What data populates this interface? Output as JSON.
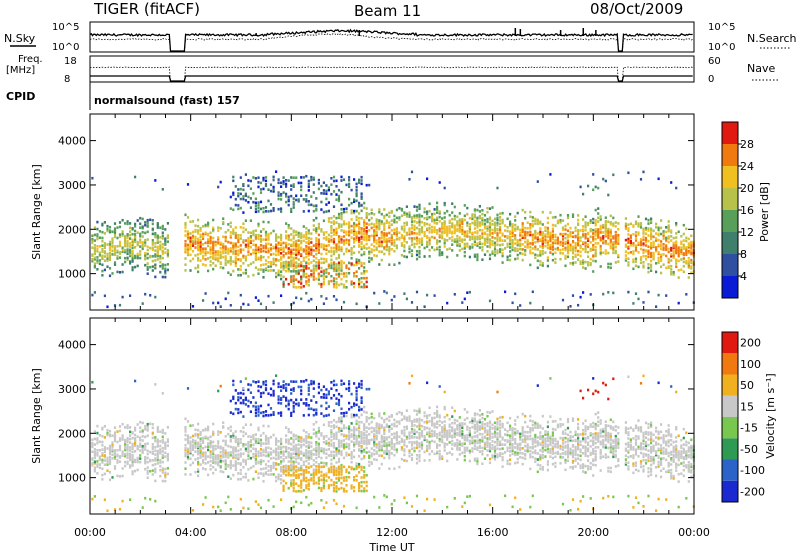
{
  "header": {
    "radar": "TIGER (fitACF)",
    "beam": "Beam 11",
    "date": "08/Oct/2009"
  },
  "summary": {
    "nsky_label": "N.Sky",
    "nsearch_label": "N.Search",
    "nsky_ticks": [
      "10^5",
      "10^0"
    ],
    "nsearch_ticks": [
      "10^5",
      "10^0"
    ],
    "freq_label_line1": "Freq.",
    "freq_label_line2": "[MHz]",
    "freq_ticks": [
      "18",
      "8"
    ],
    "nave_label": "Nave",
    "nave_ticks": [
      "60",
      "0"
    ],
    "cpid_label": "CPID",
    "cpid_text": "normalsound (fast) 157"
  },
  "chart_data": [
    {
      "type": "heatmap",
      "title": "Power",
      "ylabel": "Slant Range [km]",
      "ylim": [
        180,
        4600
      ],
      "yticks": [
        1000,
        2000,
        3000,
        4000
      ],
      "xlim_hours": [
        0,
        24
      ],
      "xticks": [
        "00:00",
        "04:00",
        "08:00",
        "12:00",
        "16:00",
        "20:00",
        "00:00"
      ],
      "xlabel": "Time UT",
      "colorbar_label": "Power [dB]",
      "colorbar_ticks": [
        "4",
        "8",
        "12",
        "16",
        "20",
        "24",
        "28"
      ],
      "colors": [
        "#0a1bd6",
        "#2f4fa0",
        "#3f7f6b",
        "#58a05a",
        "#b8c24a",
        "#f0c020",
        "#f07a10",
        "#e01a10"
      ],
      "data_gap_hours": [
        [
          3.15,
          3.75
        ],
        [
          21.0,
          21.2
        ]
      ]
    },
    {
      "type": "heatmap",
      "title": "Velocity",
      "ylabel": "Slant Range [km]",
      "ylim": [
        180,
        4600
      ],
      "yticks": [
        1000,
        2000,
        3000,
        4000
      ],
      "xlim_hours": [
        0,
        24
      ],
      "xticks": [
        "00:00",
        "04:00",
        "08:00",
        "12:00",
        "16:00",
        "20:00",
        "00:00"
      ],
      "xlabel": "Time UT",
      "colorbar_label": "Velocity [m s⁻¹]",
      "colorbar_ticks": [
        "200",
        "100",
        "50",
        "15",
        "-15",
        "-50",
        "-100",
        "-200"
      ],
      "colors": [
        "#1a2ad0",
        "#2c63c8",
        "#2e9a54",
        "#78c850",
        "#c8c8c8",
        "#f0b020",
        "#f07a10",
        "#e01a10"
      ],
      "data_gap_hours": [
        [
          3.15,
          3.75
        ],
        [
          21.0,
          21.2
        ]
      ]
    }
  ]
}
